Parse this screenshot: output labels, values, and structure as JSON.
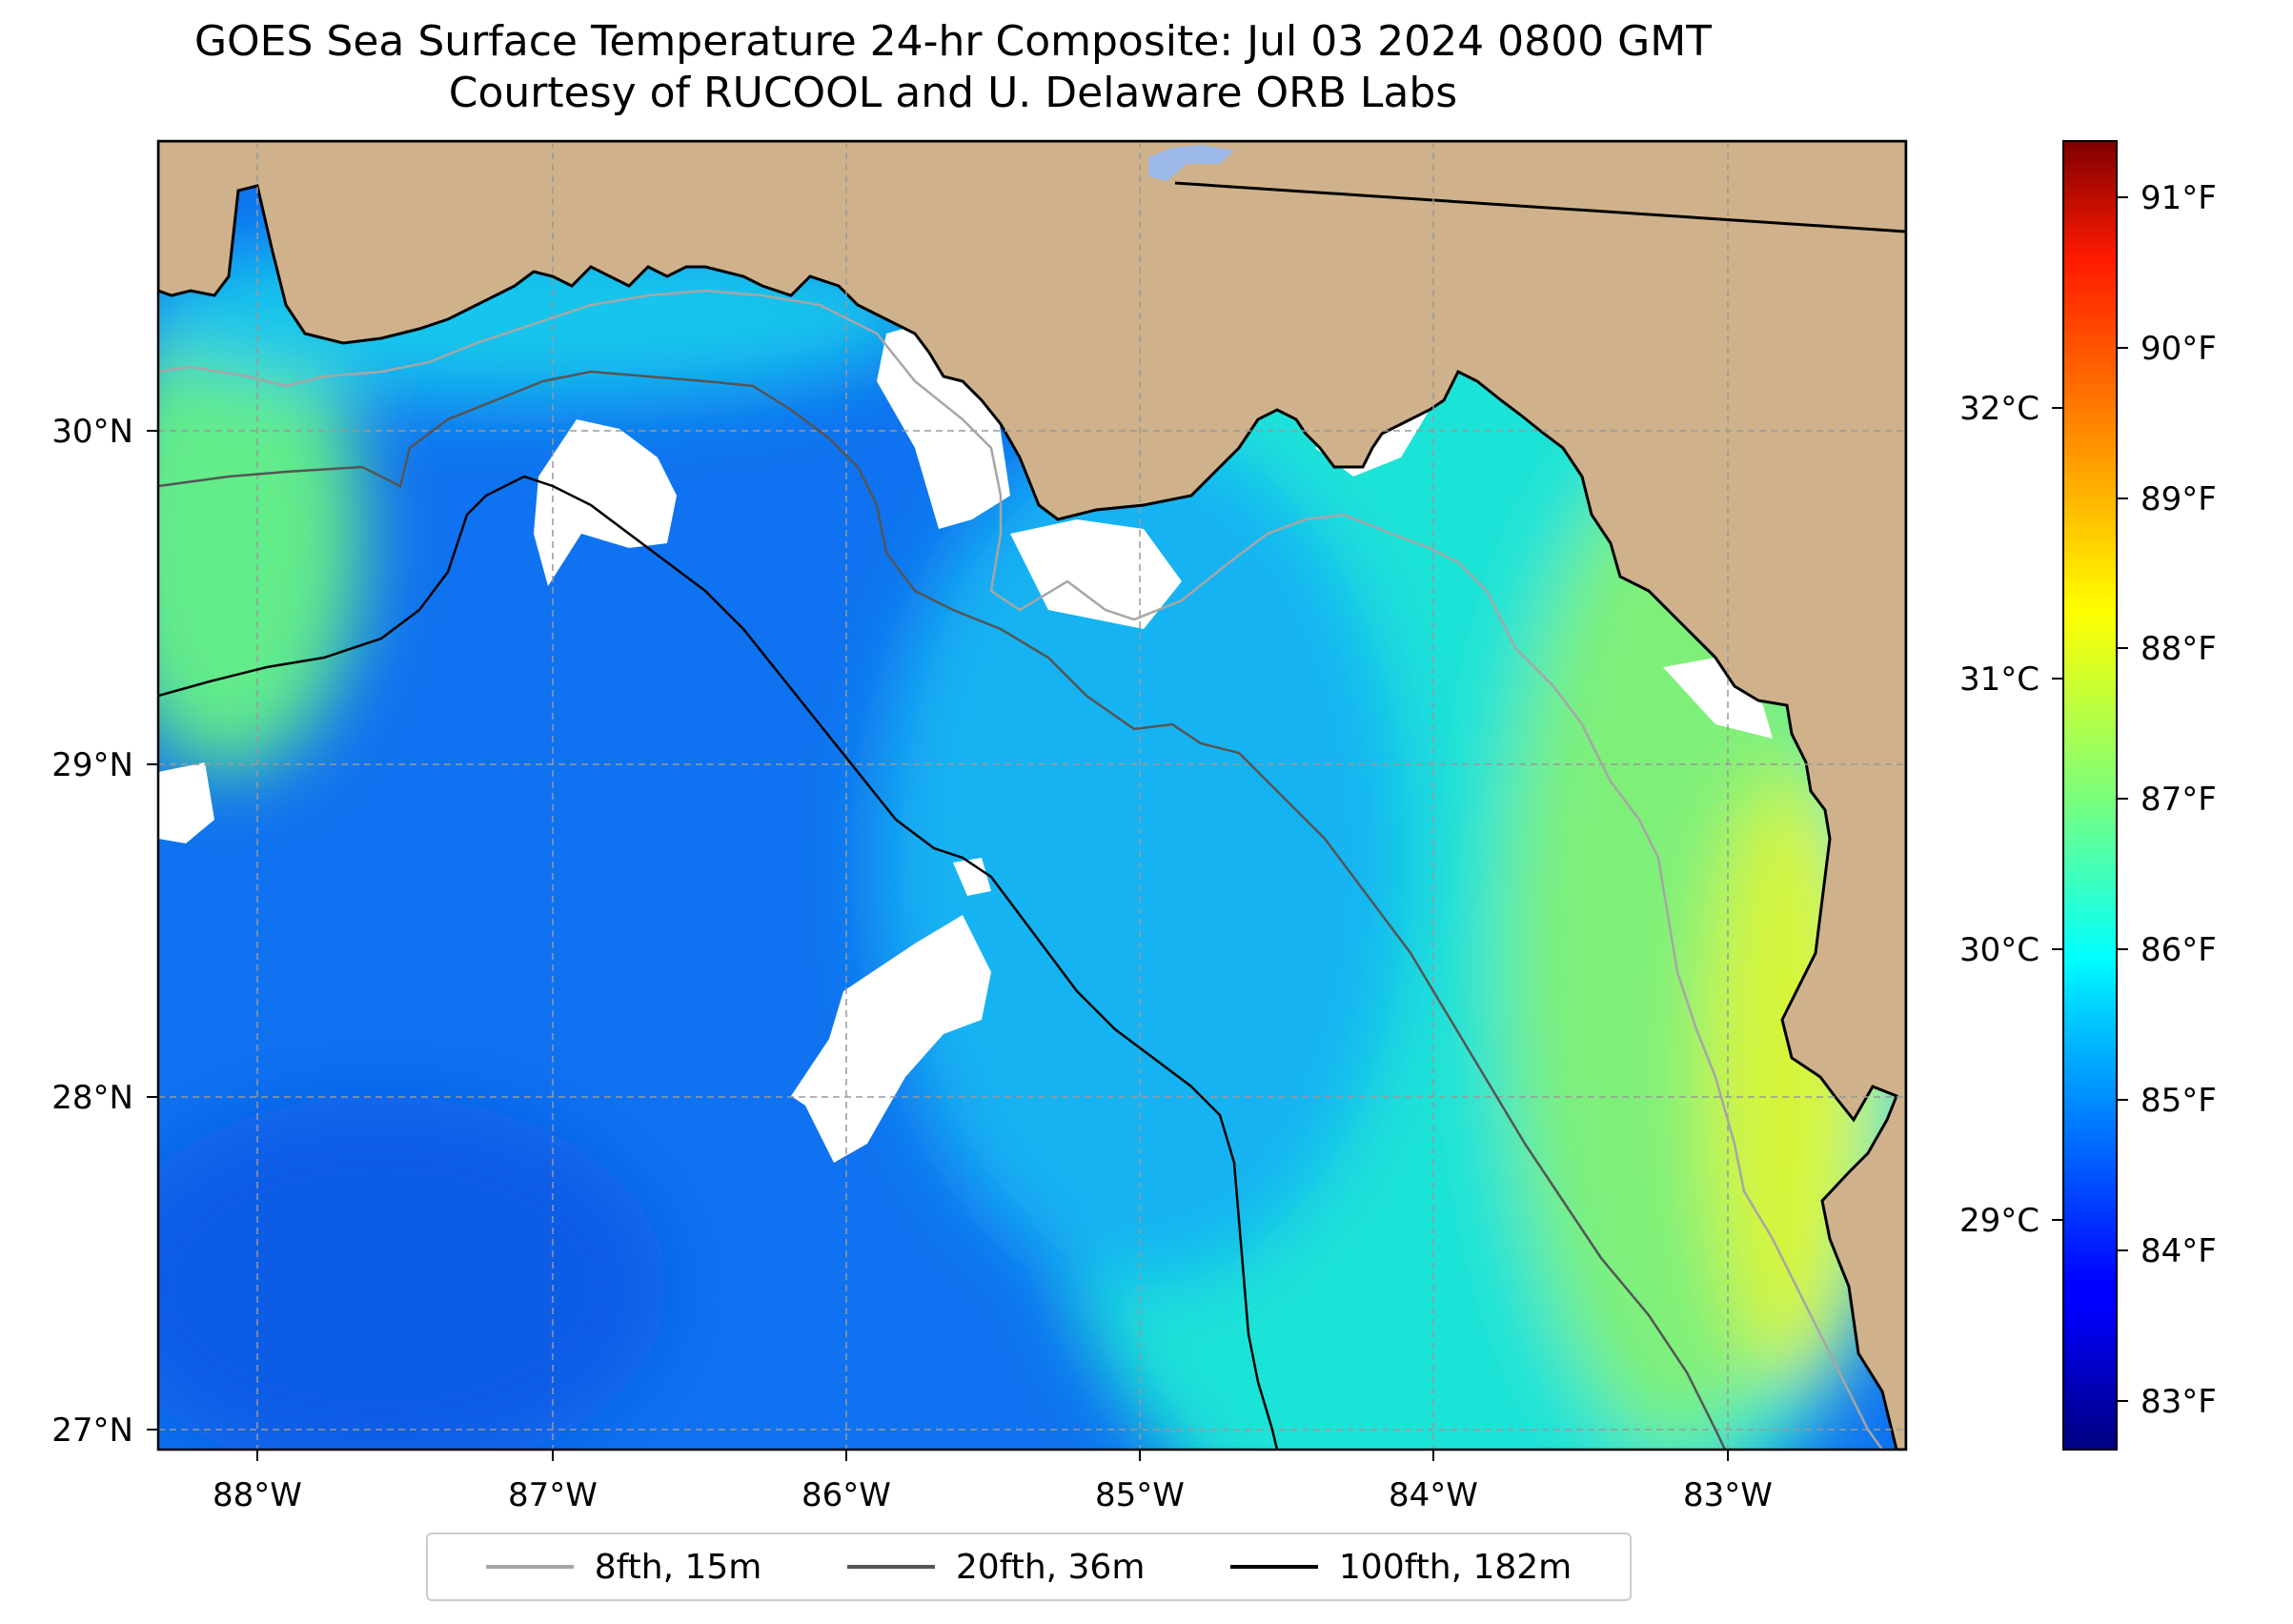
{
  "title": "GOES Sea Surface Temperature 24-hr Composite: Jul 03 2024 0800 GMT",
  "subtitle": "Courtesy of RUCOOL and U. Delaware ORB Labs",
  "map": {
    "extent": {
      "lon_min": -88.33,
      "lon_max": -82.4,
      "lat_min": 26.93,
      "lat_max": 30.86
    },
    "land_color": "#cfb28b",
    "no_data_color": "#ffffff",
    "gridlines": true,
    "lon_ticks": [
      "88°W",
      "87°W",
      "86°W",
      "85°W",
      "84°W",
      "83°W"
    ],
    "lat_ticks": [
      "27°N",
      "28°N",
      "29°N",
      "30°N"
    ]
  },
  "colorbar": {
    "colormap": "jet",
    "range_c": [
      28.3,
      33.1
    ],
    "celsius_ticks": [
      "29°C",
      "30°C",
      "31°C",
      "32°C"
    ],
    "fahrenheit_ticks": [
      "83°F",
      "84°F",
      "85°F",
      "86°F",
      "87°F",
      "88°F",
      "89°F",
      "90°F",
      "91°F"
    ]
  },
  "legend": [
    {
      "label": "8fth, 15m",
      "color": "#a6a6a6"
    },
    {
      "label": "20fth, 36m",
      "color": "#555555"
    },
    {
      "label": "100fth, 182m",
      "color": "#000000"
    }
  ]
}
